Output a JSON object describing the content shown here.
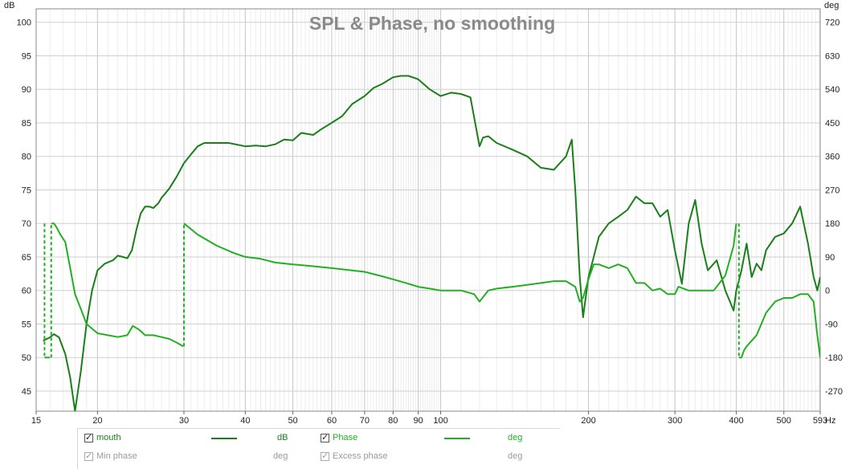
{
  "chart_data": {
    "type": "line",
    "title": "SPL & Phase, no smoothing",
    "xlabel": "Hz",
    "ylabel": "dB",
    "y2label": "deg",
    "xscale": "log",
    "xlim": [
      15,
      593
    ],
    "ylim": [
      42,
      102
    ],
    "y2lim": [
      -324,
      756
    ],
    "x_ticks": [
      15,
      20,
      30,
      40,
      50,
      60,
      70,
      80,
      90,
      100,
      200,
      300,
      400,
      500,
      593
    ],
    "x_tick_labels": [
      "15",
      "20",
      "30",
      "40",
      "50",
      "60",
      "70",
      "80",
      "90",
      "100",
      "200",
      "300",
      "400",
      "500",
      "593"
    ],
    "y_ticks": [
      45,
      50,
      55,
      60,
      65,
      70,
      75,
      80,
      85,
      90,
      95,
      100
    ],
    "y_top_label": "dB",
    "y2_ticks": [
      -270,
      -180,
      -90,
      0,
      90,
      180,
      270,
      360,
      450,
      540,
      630,
      720
    ],
    "y2_top_label": "deg",
    "grid": true,
    "series": [
      {
        "name": "mouth",
        "axis": "left",
        "unit": "dB",
        "color": "#1a7f1a",
        "x": [
          15.5,
          16.0,
          16.3,
          16.7,
          17.2,
          17.6,
          18.0,
          18.5,
          19.0,
          19.5,
          20.0,
          20.7,
          21.5,
          22.0,
          22.5,
          23.0,
          23.5,
          24.0,
          24.5,
          25.0,
          25.5,
          26.0,
          26.6,
          27.0,
          28.0,
          29.0,
          30.0,
          31.0,
          32.0,
          33.0,
          35.0,
          37.0,
          40.0,
          42.0,
          44.0,
          46.0,
          48.0,
          50.0,
          52.0,
          55.0,
          57.0,
          60.0,
          63.0,
          66.0,
          70.0,
          73.0,
          76.0,
          80.0,
          83.0,
          86.0,
          90.0,
          95.0,
          100.0,
          105.0,
          110.0,
          115.0,
          120.0,
          122.0,
          125.0,
          130.0,
          140.0,
          150.0,
          160.0,
          170.0,
          180.0,
          185.0,
          188.0,
          192.0,
          195.0,
          200.0,
          205.0,
          210.0,
          220.0,
          230.0,
          240.0,
          250.0,
          260.0,
          270.0,
          280.0,
          290.0,
          300.0,
          310.0,
          320.0,
          330.0,
          340.0,
          350.0,
          365.0,
          380.0,
          390.0,
          395.0,
          400.0,
          410.0,
          420.0,
          430.0,
          440.0,
          450.0,
          460.0,
          480.0,
          500.0,
          520.0,
          540.0,
          560.0,
          575.0,
          585.0,
          593.0
        ],
        "values": [
          52.5,
          53.0,
          53.5,
          53.0,
          50.5,
          47.0,
          42.0,
          48.0,
          55.0,
          60.0,
          63.0,
          64.0,
          64.5,
          65.2,
          65.0,
          64.8,
          66.0,
          69.0,
          71.5,
          72.5,
          72.5,
          72.3,
          73.0,
          73.8,
          75.2,
          77.0,
          79.0,
          80.3,
          81.5,
          82.0,
          82.0,
          82.0,
          81.5,
          81.6,
          81.5,
          81.8,
          82.5,
          82.4,
          83.5,
          83.2,
          84.0,
          85.0,
          86.0,
          87.8,
          89.0,
          90.2,
          90.8,
          91.8,
          92.0,
          92.0,
          91.5,
          90.0,
          89.0,
          89.5,
          89.3,
          88.8,
          81.5,
          82.8,
          83.0,
          82.0,
          81.0,
          80.0,
          78.3,
          78.0,
          80.0,
          82.5,
          75.0,
          62.0,
          56.0,
          62.0,
          65.0,
          68.0,
          70.0,
          71.0,
          72.0,
          74.0,
          73.0,
          73.0,
          71.0,
          72.0,
          66.0,
          61.0,
          70.0,
          73.5,
          67.0,
          63.0,
          64.5,
          60.0,
          58.0,
          57.0,
          60.0,
          63.0,
          67.0,
          62.0,
          64.0,
          63.0,
          66.0,
          68.0,
          68.5,
          70.0,
          72.5,
          67.0,
          62.0,
          60.0,
          62.0
        ]
      },
      {
        "name": "Phase",
        "axis": "right",
        "unit": "deg",
        "color": "#22b022",
        "x": [
          15.5,
          15.6,
          15.8,
          16.0,
          16.1,
          16.3,
          16.4,
          16.5,
          16.8,
          17.2,
          17.6,
          18.0,
          18.5,
          19.0,
          20.0,
          21.0,
          22.0,
          23.0,
          23.6,
          24.3,
          25.0,
          26.0,
          27.0,
          28.0,
          29.0,
          29.9,
          30.0,
          32.0,
          35.0,
          38.0,
          40.0,
          43.0,
          46.0,
          50.0,
          55.0,
          60.0,
          65.0,
          70.0,
          75.0,
          80.0,
          85.0,
          90.0,
          95.0,
          100.0,
          110.0,
          117.0,
          120.0,
          125.0,
          130.0,
          140.0,
          150.0,
          160.0,
          170.0,
          180.0,
          188.0,
          192.0,
          195.0,
          200.0,
          205.0,
          210.0,
          220.0,
          230.0,
          240.0,
          250.0,
          260.0,
          270.0,
          280.0,
          290.0,
          300.0,
          305.0,
          320.0,
          340.0,
          360.0,
          380.0,
          395.0,
          400.0,
          405.0,
          410.0,
          415.0,
          420.0,
          440.0,
          460.0,
          480.0,
          500.0,
          520.0,
          540.0,
          560.0,
          575.0,
          585.0,
          593.0
        ],
        "values": [
          180,
          -180,
          -180,
          -180,
          180,
          180,
          175,
          170,
          150,
          130,
          60,
          -10,
          -50,
          -90,
          -115,
          -120,
          -125,
          -120,
          -95,
          -105,
          -120,
          -120,
          -125,
          -130,
          -140,
          -150,
          180,
          150,
          120,
          100,
          90,
          85,
          75,
          70,
          65,
          60,
          55,
          50,
          40,
          30,
          20,
          10,
          5,
          0,
          0,
          -10,
          -30,
          0,
          5,
          10,
          15,
          20,
          25,
          25,
          10,
          -30,
          -20,
          30,
          70,
          70,
          60,
          70,
          60,
          20,
          20,
          0,
          5,
          -10,
          -10,
          10,
          0,
          0,
          0,
          40,
          120,
          180,
          -180,
          -180,
          -160,
          -150,
          -120,
          -60,
          -30,
          -20,
          -20,
          -10,
          -10,
          -30,
          -120,
          -180
        ]
      }
    ],
    "legend": {
      "placement": "bottom",
      "row1": {
        "left_name": "mouth",
        "left_unit": "dB",
        "left_color": "#1a7f1a",
        "right_name": "Phase",
        "right_unit": "deg",
        "right_color": "#22b022"
      },
      "row2": {
        "left_name": "Min phase",
        "left_unit": "deg",
        "right_name": "Excess phase",
        "right_unit": "deg"
      }
    }
  }
}
